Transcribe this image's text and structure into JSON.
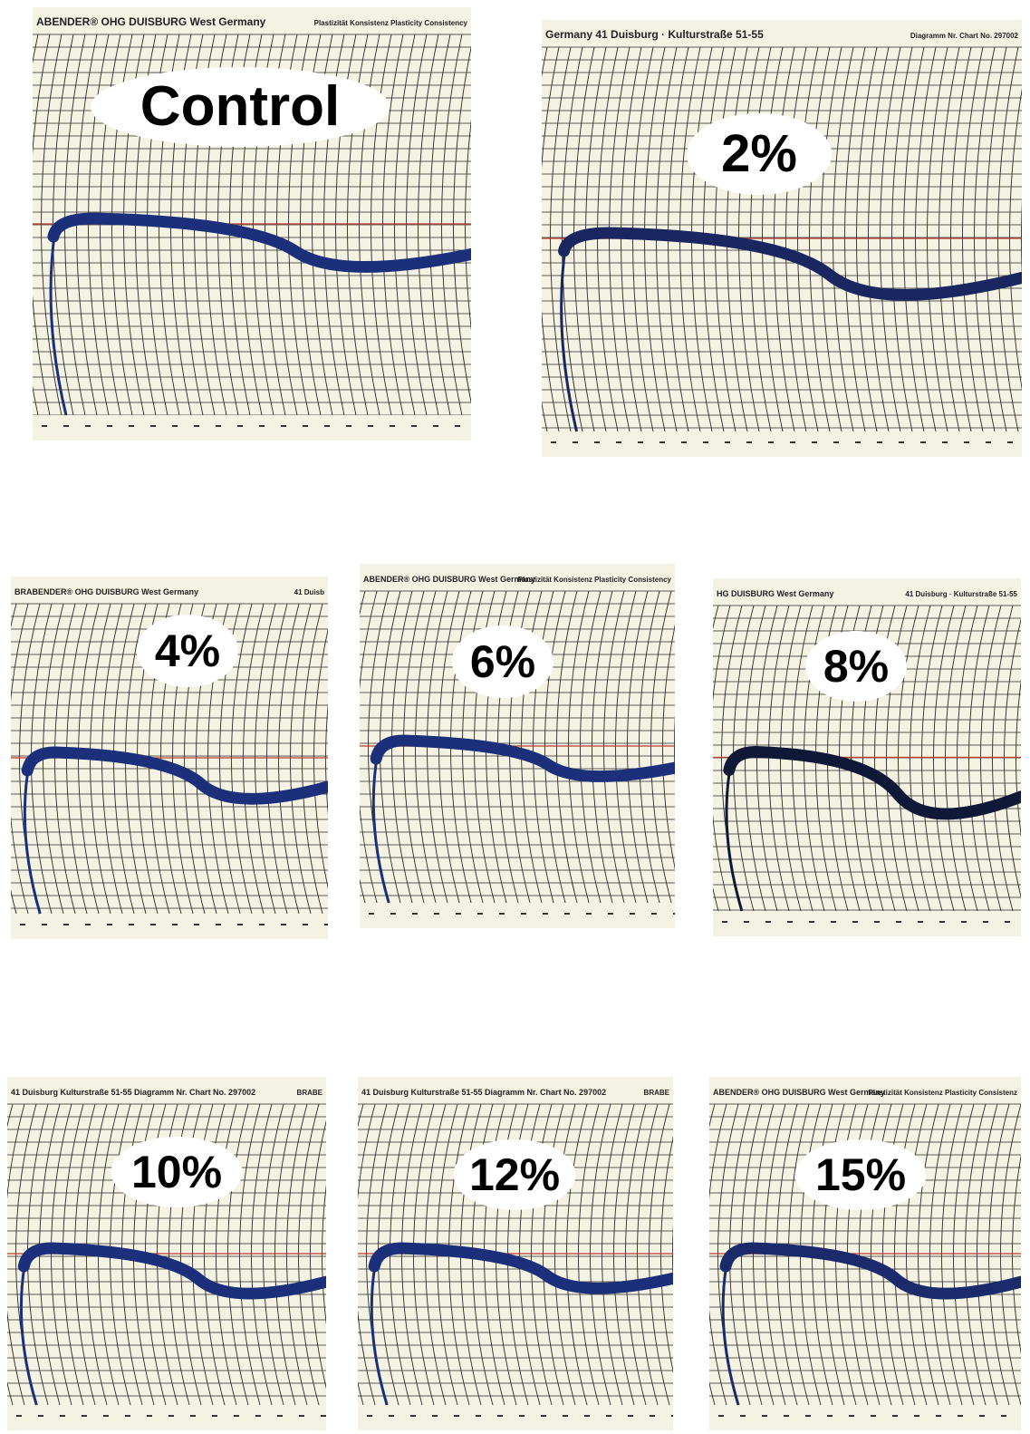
{
  "panels": [
    {
      "label": "Control",
      "header": "ABENDER® OHG DUISBURG West Germany",
      "header_right": "Plastizität Konsistenz Plasticity Consistency"
    },
    {
      "label": "2%",
      "header": "Germany 41 Duisburg · Kulturstraße 51-55",
      "header_right": "Diagramm Nr. Chart No. 297002"
    },
    {
      "label": "4%",
      "header": "BRABENDER® OHG DUISBURG West Germany",
      "header_right": "41 Duisb"
    },
    {
      "label": "6%",
      "header": "ABENDER® OHG DUISBURG West Germany",
      "header_right": "Plastizität Konsistenz Plasticity Consistency"
    },
    {
      "label": "8%",
      "header": "HG DUISBURG West Germany",
      "header_right": "41 Duisburg · Kulturstraße 51-55"
    },
    {
      "label": "10%",
      "header": "41 Duisburg Kulturstraße 51-55 Diagramm Nr. Chart No. 297002",
      "header_right": "BRABE"
    },
    {
      "label": "12%",
      "header": "41 Duisburg Kulturstraße 51-55 Diagramm Nr. Chart No. 297002",
      "header_right": "BRABE"
    },
    {
      "label": "15%",
      "header": "ABENDER® OHG DUISBURG West Germany",
      "header_right": "Plastizität Konsistenz Plasticity Consistenz"
    }
  ]
}
